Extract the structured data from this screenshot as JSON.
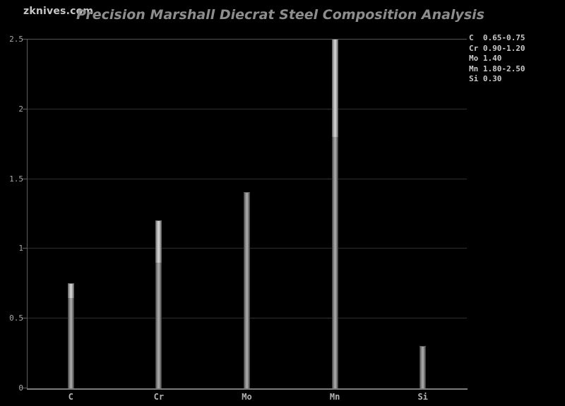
{
  "page": {
    "background": "#000000"
  },
  "brand": {
    "label": "zknives.com"
  },
  "colors": {
    "background": "#000000",
    "grid": "#2e2e2e",
    "grid_top": "#535353",
    "axis": "#7d7d7d",
    "axis_left": "#5e5e5e",
    "tick_text": "#a9a9a9",
    "category_text": "#b3b3b3",
    "legend_text": "#c9c9c9",
    "title_text": "#8d8d8d",
    "brand_text": "#c6c6c6",
    "bar_base_center": "#a8a8a8",
    "bar_range_center": "#d0d0d0"
  },
  "chart_data": {
    "type": "bar",
    "title": "Precision Marshall Diecrat Steel Composition Analysis",
    "xlabel": "",
    "ylabel": "",
    "categories": [
      "C",
      "Cr",
      "Mo",
      "Mn",
      "Si"
    ],
    "bars": [
      {
        "label": "C",
        "min": 0.65,
        "max": 0.75,
        "display": "0.65-0.75"
      },
      {
        "label": "Cr",
        "min": 0.9,
        "max": 1.2,
        "display": "0.90-1.20"
      },
      {
        "label": "Mo",
        "min": null,
        "max": 1.4,
        "display": "1.40"
      },
      {
        "label": "Mn",
        "min": 1.8,
        "max": 2.5,
        "display": "1.80-2.50"
      },
      {
        "label": "Si",
        "min": null,
        "max": 0.3,
        "display": "0.30"
      }
    ],
    "ylim": [
      0,
      2.5
    ],
    "yticks": [
      {
        "value": 0,
        "label": "0"
      },
      {
        "value": 0.5,
        "label": "0.5"
      },
      {
        "value": 1,
        "label": "1"
      },
      {
        "value": 1.5,
        "label": "1.5"
      },
      {
        "value": 2,
        "label": "2"
      },
      {
        "value": 2.5,
        "label": "2.5"
      }
    ],
    "grid": "horizontal",
    "legend_position": "top-right",
    "legend": [
      "C  0.65-0.75",
      "Cr 0.90-1.20",
      "Mo 1.40",
      "Mn 1.80-2.50",
      "Si 0.30"
    ]
  }
}
